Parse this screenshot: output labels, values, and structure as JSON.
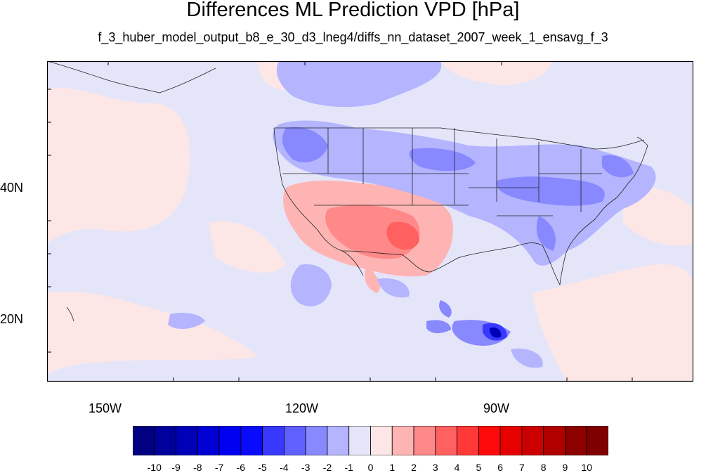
{
  "title": "Differences ML Prediction VPD [hPa]",
  "subtitle": "f_3_huber_model_output_b8_e_30_d3_lneg4/diffs_nn_dataset_2007_week_1_ensavg_f_3",
  "map": {
    "lon_range": [
      -160,
      -62
    ],
    "lat_range": [
      11,
      60
    ],
    "lat_labels": [
      "40N",
      "20N"
    ],
    "lon_labels": [
      "150W",
      "120W",
      "90W"
    ],
    "background_color": "#e5e5fa"
  },
  "colorbar": {
    "labels": [
      "-10",
      "-9",
      "-8",
      "-7",
      "-6",
      "-5",
      "-4",
      "-3",
      "-2",
      "-1",
      "0",
      "1",
      "2",
      "3",
      "4",
      "5",
      "6",
      "7",
      "8",
      "9",
      "10"
    ],
    "colors": [
      "#000080",
      "#00009c",
      "#0000b8",
      "#0000d4",
      "#0000f0",
      "#0a0aff",
      "#3838ff",
      "#6060ff",
      "#8888ff",
      "#b4b4ff",
      "#e5e5fa",
      "#fce6e6",
      "#ffb4b4",
      "#ff8888",
      "#ff6060",
      "#ff3838",
      "#ff0a0a",
      "#e60000",
      "#cc0000",
      "#b00000",
      "#8c0000",
      "#800000"
    ]
  }
}
